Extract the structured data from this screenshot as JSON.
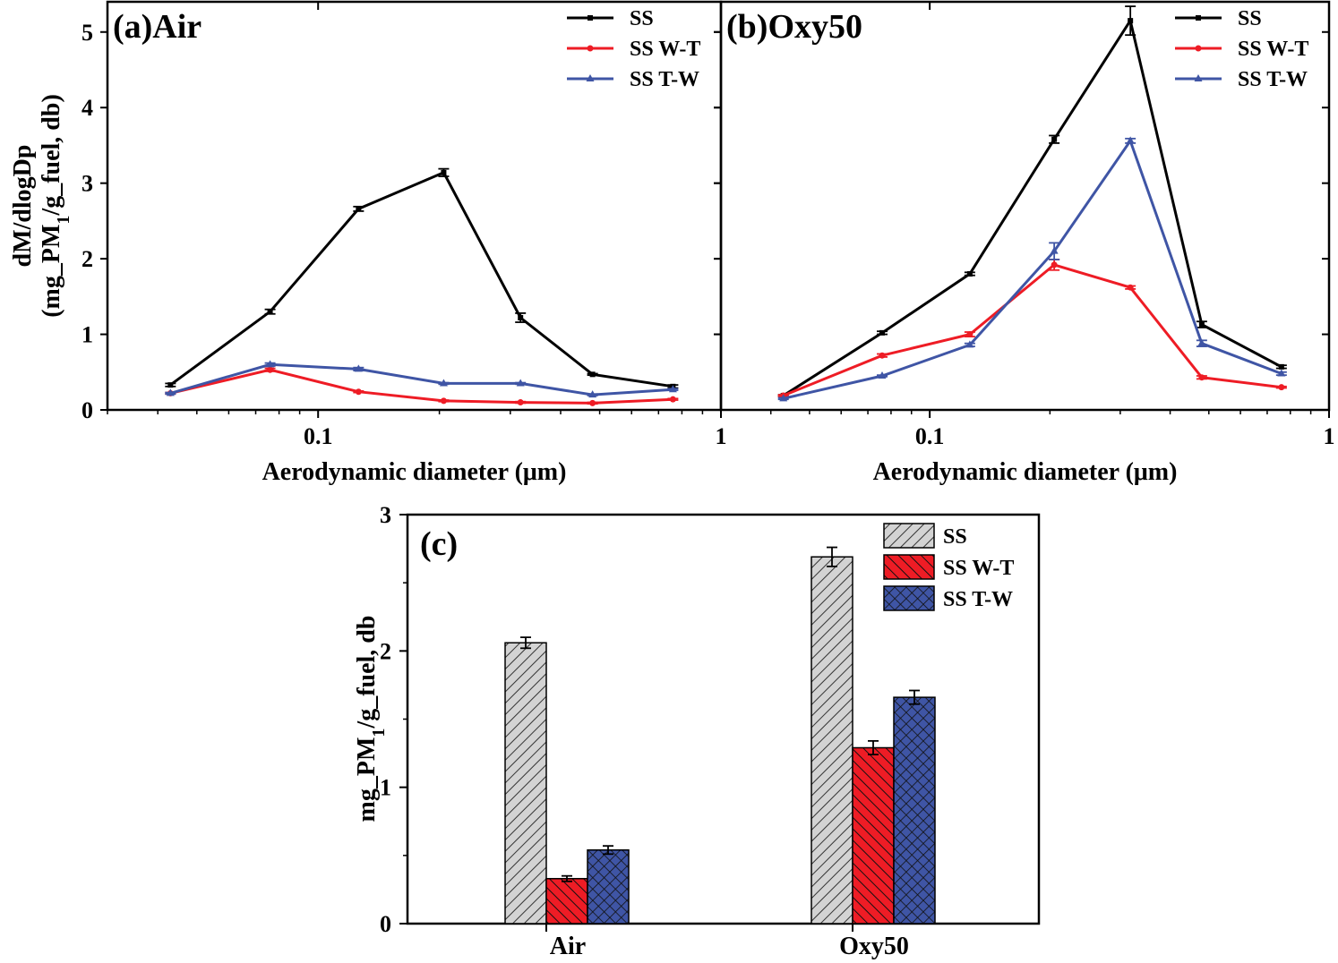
{
  "colors": {
    "SS": "#000000",
    "SS W-T": "#ee1c25",
    "SS T-W": "#3f55a5"
  },
  "chart_data": [
    {
      "type": "line",
      "panel_label": "(a)Air",
      "xscale": "log",
      "xlim": [
        0.03,
        1
      ],
      "ylim": [
        0,
        5.4
      ],
      "xlabel": "Aerodynamic diameter (μm)",
      "ylabel_lines": [
        "dM/dlogDp",
        "(mg_PM",
        "1",
        "/g_fuel, db)"
      ],
      "xticks": [
        0.1,
        1
      ],
      "xtick_labels": [
        "0.1",
        "1"
      ],
      "yticks": [
        0,
        1,
        2,
        3,
        4,
        5
      ],
      "ytick_labels": [
        "0",
        "1",
        "2",
        "3",
        "4",
        "5"
      ],
      "x": [
        0.043,
        0.076,
        0.126,
        0.205,
        0.318,
        0.48,
        0.76
      ],
      "series": [
        {
          "name": "SS",
          "values": [
            0.33,
            1.3,
            2.66,
            3.14,
            1.22,
            0.47,
            0.31
          ],
          "errors": [
            0.02,
            0.03,
            0.03,
            0.05,
            0.06,
            0.01,
            0.02
          ]
        },
        {
          "name": "SS W-T",
          "values": [
            0.22,
            0.53,
            0.24,
            0.12,
            0.1,
            0.09,
            0.14
          ],
          "errors": [
            0.01,
            0.02,
            0.01,
            0.01,
            0.01,
            0.01,
            0.01
          ]
        },
        {
          "name": "SS T-W",
          "values": [
            0.22,
            0.6,
            0.54,
            0.35,
            0.35,
            0.2,
            0.27
          ],
          "errors": [
            0.01,
            0.02,
            0.02,
            0.01,
            0.01,
            0.01,
            0.01
          ]
        }
      ],
      "legend": [
        "SS",
        "SS W-T",
        "SS T-W"
      ],
      "legend_position": "top-right"
    },
    {
      "type": "line",
      "panel_label": "(b)Oxy50",
      "xscale": "log",
      "xlim": [
        0.03,
        1
      ],
      "ylim": [
        0,
        5.4
      ],
      "xlabel": "Aerodynamic diameter (μm)",
      "xticks": [
        0.1,
        1
      ],
      "xtick_labels": [
        "0.1",
        "1"
      ],
      "x": [
        0.043,
        0.076,
        0.126,
        0.205,
        0.318,
        0.48,
        0.76
      ],
      "series": [
        {
          "name": "SS",
          "values": [
            0.19,
            1.02,
            1.8,
            3.58,
            5.15,
            1.13,
            0.57
          ],
          "errors": [
            0.01,
            0.02,
            0.02,
            0.05,
            0.19,
            0.04,
            0.02
          ]
        },
        {
          "name": "SS W-T",
          "values": [
            0.19,
            0.72,
            1.0,
            1.92,
            1.62,
            0.43,
            0.3
          ],
          "errors": [
            0.01,
            0.02,
            0.03,
            0.07,
            0.02,
            0.02,
            0.01
          ]
        },
        {
          "name": "SS T-W",
          "values": [
            0.15,
            0.45,
            0.86,
            2.1,
            3.56,
            0.88,
            0.48
          ],
          "errors": [
            0.01,
            0.01,
            0.02,
            0.11,
            0.03,
            0.04,
            0.02
          ]
        }
      ],
      "legend": [
        "SS",
        "SS W-T",
        "SS T-W"
      ],
      "legend_position": "top-right"
    },
    {
      "type": "bar",
      "panel_label": "(c)",
      "categories": [
        "Air",
        "Oxy50"
      ],
      "ylim": [
        0,
        3
      ],
      "yticks": [
        0,
        1,
        2,
        3
      ],
      "ytick_labels": [
        "0",
        "1",
        "2",
        "3"
      ],
      "ylabel_parts": [
        "mg_PM",
        "1",
        "/g_fuel, db"
      ],
      "series": [
        {
          "name": "SS",
          "values": [
            2.06,
            2.69
          ],
          "errors": [
            0.04,
            0.07
          ],
          "pattern": "diagonal-hatch"
        },
        {
          "name": "SS W-T",
          "values": [
            0.33,
            1.29
          ],
          "errors": [
            0.02,
            0.05
          ],
          "pattern": "back-diagonal-hatch"
        },
        {
          "name": "SS T-W",
          "values": [
            0.54,
            1.66
          ],
          "errors": [
            0.03,
            0.05
          ],
          "pattern": "crosshatch"
        }
      ],
      "legend": [
        "SS",
        "SS W-T",
        "SS T-W"
      ],
      "legend_position": "top-right"
    }
  ]
}
